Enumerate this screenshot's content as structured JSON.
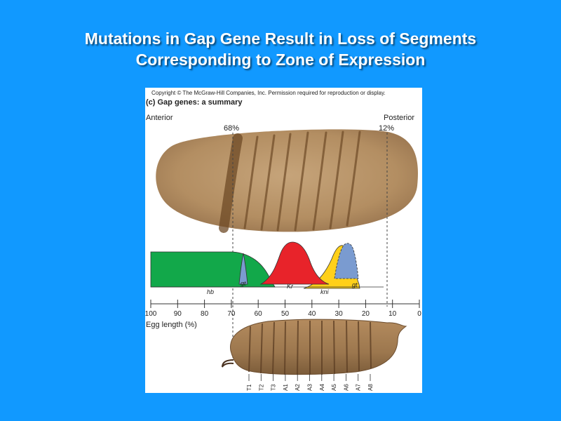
{
  "slide": {
    "title_line1": "Mutations in Gap Gene Result in Loss of Segments",
    "title_line2": "Corresponding to Zone of Expression"
  },
  "figure": {
    "copyright": "Copyright © The McGraw-Hill Companies, Inc. Permission required for reproduction or display.",
    "heading": "(c) Gap genes: a summary",
    "anterior": "Anterior",
    "posterior": "Posterior",
    "marker_left": "68%",
    "marker_right": "12%",
    "axis_label": "Egg length (%)",
    "axis_ticks": [
      "100",
      "90",
      "80",
      "70",
      "60",
      "50",
      "40",
      "30",
      "20",
      "10",
      "0"
    ],
    "genes": [
      {
        "name": "hb",
        "color": "#12a84a"
      },
      {
        "name": "gt",
        "color": "#7a9bd0"
      },
      {
        "name": "Kr",
        "color": "#e8232a"
      },
      {
        "name": "kni",
        "color": "#ffd01a"
      },
      {
        "name": "gt",
        "color": "#7a9bd0"
      }
    ],
    "segments": [
      "T1",
      "T2",
      "T3",
      "A1",
      "A2",
      "A3",
      "A4",
      "A5",
      "A6",
      "A7",
      "A8"
    ]
  }
}
